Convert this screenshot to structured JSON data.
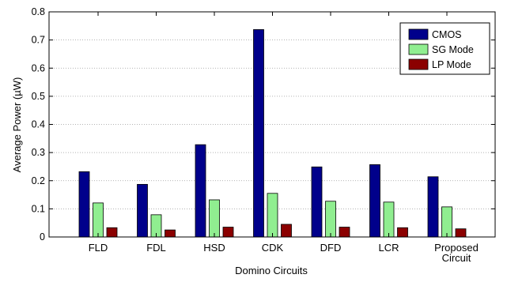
{
  "chart_data": {
    "type": "bar",
    "title": "",
    "xlabel": "Domino Circuits",
    "ylabel": "Average Power (µW)",
    "ylim": [
      0,
      0.8
    ],
    "yticks": [
      0,
      0.1,
      0.2,
      0.3,
      0.4,
      0.5,
      0.6,
      0.7,
      0.8
    ],
    "ytick_labels": [
      "0",
      "0.1",
      "0.2",
      "0.3",
      "0.4",
      "0.5",
      "0.6",
      "0.7",
      "0.8"
    ],
    "grid": "horizontal dotted",
    "legend_position": "top-right",
    "categories": [
      [
        "FLD"
      ],
      [
        "FDL"
      ],
      [
        "HSD"
      ],
      [
        "CDK"
      ],
      [
        "DFD"
      ],
      [
        "LCR"
      ],
      [
        "Proposed",
        "Circuit"
      ]
    ],
    "series": [
      {
        "name": "CMOS",
        "color": "#00008b",
        "values": [
          0.232,
          0.187,
          0.328,
          0.737,
          0.249,
          0.257,
          0.214
        ]
      },
      {
        "name": "SG Mode",
        "color": "#90ee90",
        "values": [
          0.121,
          0.079,
          0.132,
          0.155,
          0.127,
          0.124,
          0.107
        ]
      },
      {
        "name": "LP Mode",
        "color": "#8b0000",
        "values": [
          0.033,
          0.025,
          0.035,
          0.045,
          0.035,
          0.033,
          0.029
        ]
      }
    ]
  }
}
